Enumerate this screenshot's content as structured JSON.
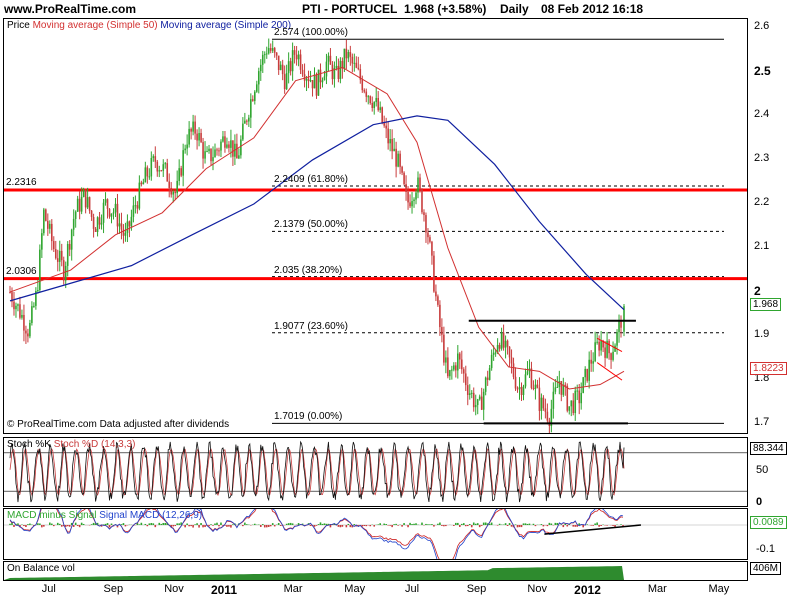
{
  "header": {
    "site": "www.ProRealTime.com",
    "symbol": "PTI - PORTUCEL",
    "quote": "1.968 (+3.58%)",
    "period": "Daily",
    "datetime": "08 Feb 2012 16:18"
  },
  "legend": {
    "price": "Price",
    "ma50": "Moving average (Simple 50)",
    "ma200": "Moving average (Simple 200)"
  },
  "copyright": "© ProRealTime.com  Data adjusted after dividends",
  "colors": {
    "up": "#2fa52f",
    "down": "#c83c3c",
    "ma50": "#d23030",
    "ma200": "#1020a0",
    "resistance": "#ff0000",
    "macd": "#2244cc",
    "signal": "#cc2222"
  },
  "chart_data": [
    {
      "type": "candlestick",
      "panel": "price",
      "x_ticks": [
        "Jul",
        "Sep",
        "Nov",
        "2011",
        "Mar",
        "May",
        "Jul",
        "Sep",
        "Nov",
        "2012",
        "Mar",
        "May"
      ],
      "y_ticks": [
        "2.6",
        "2.5",
        "2.4",
        "2.3",
        "2.2",
        "2.1",
        "2",
        "1.9",
        "1.8",
        "1.7"
      ],
      "ylim": [
        1.68,
        2.62
      ],
      "close_path": [
        [
          "2010-06-01",
          2.0
        ],
        [
          "2010-06-10",
          1.96
        ],
        [
          "2010-06-20",
          1.91
        ],
        [
          "2010-06-28",
          2.0
        ],
        [
          "2010-07-05",
          2.18
        ],
        [
          "2010-07-15",
          2.1
        ],
        [
          "2010-07-25",
          2.05
        ],
        [
          "2010-08-05",
          2.18
        ],
        [
          "2010-08-15",
          2.22
        ],
        [
          "2010-08-25",
          2.15
        ],
        [
          "2010-09-05",
          2.2
        ],
        [
          "2010-09-15",
          2.18
        ],
        [
          "2010-09-25",
          2.12
        ],
        [
          "2010-10-05",
          2.2
        ],
        [
          "2010-10-15",
          2.26
        ],
        [
          "2010-10-25",
          2.3
        ],
        [
          "2010-11-05",
          2.27
        ],
        [
          "2010-11-15",
          2.22
        ],
        [
          "2010-11-25",
          2.35
        ],
        [
          "2010-12-05",
          2.37
        ],
        [
          "2010-12-15",
          2.3
        ],
        [
          "2010-12-25",
          2.32
        ],
        [
          "2011-01-05",
          2.36
        ],
        [
          "2011-01-15",
          2.3
        ],
        [
          "2011-01-25",
          2.4
        ],
        [
          "2011-02-05",
          2.5
        ],
        [
          "2011-02-15",
          2.56
        ],
        [
          "2011-02-25",
          2.52
        ],
        [
          "2011-03-05",
          2.48
        ],
        [
          "2011-03-15",
          2.55
        ],
        [
          "2011-03-25",
          2.5
        ],
        [
          "2011-04-05",
          2.47
        ],
        [
          "2011-04-15",
          2.52
        ],
        [
          "2011-04-25",
          2.49
        ],
        [
          "2011-05-05",
          2.54
        ],
        [
          "2011-05-15",
          2.5
        ],
        [
          "2011-05-25",
          2.46
        ],
        [
          "2011-06-05",
          2.42
        ],
        [
          "2011-06-15",
          2.35
        ],
        [
          "2011-06-25",
          2.3
        ],
        [
          "2011-07-05",
          2.2
        ],
        [
          "2011-07-15",
          2.25
        ],
        [
          "2011-07-25",
          2.15
        ],
        [
          "2011-08-05",
          1.95
        ],
        [
          "2011-08-15",
          1.8
        ],
        [
          "2011-08-25",
          1.85
        ],
        [
          "2011-09-05",
          1.78
        ],
        [
          "2011-09-15",
          1.73
        ],
        [
          "2011-09-25",
          1.82
        ],
        [
          "2011-10-05",
          1.9
        ],
        [
          "2011-10-15",
          1.85
        ],
        [
          "2011-10-25",
          1.78
        ],
        [
          "2011-11-05",
          1.82
        ],
        [
          "2011-11-15",
          1.75
        ],
        [
          "2011-11-25",
          1.72
        ],
        [
          "2011-12-05",
          1.8
        ],
        [
          "2011-12-15",
          1.74
        ],
        [
          "2011-12-25",
          1.76
        ],
        [
          "2012-01-05",
          1.84
        ],
        [
          "2012-01-15",
          1.89
        ],
        [
          "2012-01-25",
          1.86
        ],
        [
          "2012-02-01",
          1.9
        ],
        [
          "2012-02-08",
          1.968
        ]
      ],
      "ma50_path": [
        [
          "2010-06-01",
          2.0
        ],
        [
          "2010-08-01",
          2.05
        ],
        [
          "2010-09-15",
          2.13
        ],
        [
          "2010-11-01",
          2.18
        ],
        [
          "2010-12-15",
          2.28
        ],
        [
          "2011-02-01",
          2.35
        ],
        [
          "2011-03-15",
          2.48
        ],
        [
          "2011-05-01",
          2.51
        ],
        [
          "2011-06-15",
          2.45
        ],
        [
          "2011-07-15",
          2.34
        ],
        [
          "2011-08-15",
          2.1
        ],
        [
          "2011-09-15",
          1.92
        ],
        [
          "2011-10-15",
          1.83
        ],
        [
          "2011-11-15",
          1.82
        ],
        [
          "2011-12-15",
          1.78
        ],
        [
          "2012-01-15",
          1.79
        ],
        [
          "2012-02-08",
          1.82
        ]
      ],
      "ma200_path": [
        [
          "2010-06-01",
          1.98
        ],
        [
          "2010-08-01",
          2.02
        ],
        [
          "2010-10-01",
          2.06
        ],
        [
          "2010-12-01",
          2.13
        ],
        [
          "2011-02-01",
          2.2
        ],
        [
          "2011-04-01",
          2.3
        ],
        [
          "2011-06-01",
          2.38
        ],
        [
          "2011-07-15",
          2.4
        ],
        [
          "2011-08-15",
          2.39
        ],
        [
          "2011-10-01",
          2.29
        ],
        [
          "2011-11-15",
          2.16
        ],
        [
          "2012-01-01",
          2.04
        ],
        [
          "2012-02-08",
          1.96
        ]
      ],
      "horizontal_levels": [
        {
          "label": "2.2316",
          "value": 2.2316,
          "style": "resistance"
        },
        {
          "label": "2.0306",
          "value": 2.0306,
          "style": "resistance"
        }
      ],
      "fibonacci": [
        {
          "label": "2.574 (100.00%)",
          "value": 2.574,
          "style": "solid"
        },
        {
          "label": "2.2409 (61.80%)",
          "value": 2.2409,
          "style": "dashed"
        },
        {
          "label": "2.1379 (50.00%)",
          "value": 2.1379,
          "style": "dashed"
        },
        {
          "label": "2.035 (38.20%)",
          "value": 2.035,
          "style": "dashed"
        },
        {
          "label": "1.9077 (23.60%)",
          "value": 1.9077,
          "style": "dashed"
        },
        {
          "label": "1.7019 (0.00%)",
          "value": 1.7019,
          "style": "solid"
        }
      ],
      "current_price": "1.968",
      "ma50_value": "1.8223"
    },
    {
      "type": "line",
      "panel": "stochastic",
      "title": "Stoch %K",
      "subtitle": "Stoch %D (14,3,3)",
      "y_ticks": [
        "50",
        "0"
      ],
      "ylim": [
        0,
        100
      ],
      "levels": [
        20,
        80
      ],
      "current_value": "88.344"
    },
    {
      "type": "line",
      "panel": "macd",
      "title": "MACD minus Signal",
      "subtitle": "Signal MACD (12,26,9)",
      "y_ticks": [
        "-0.1"
      ],
      "current_value": "0.0089"
    },
    {
      "type": "area",
      "panel": "obv",
      "title": "On Balance vol",
      "current_value": "406M"
    }
  ]
}
